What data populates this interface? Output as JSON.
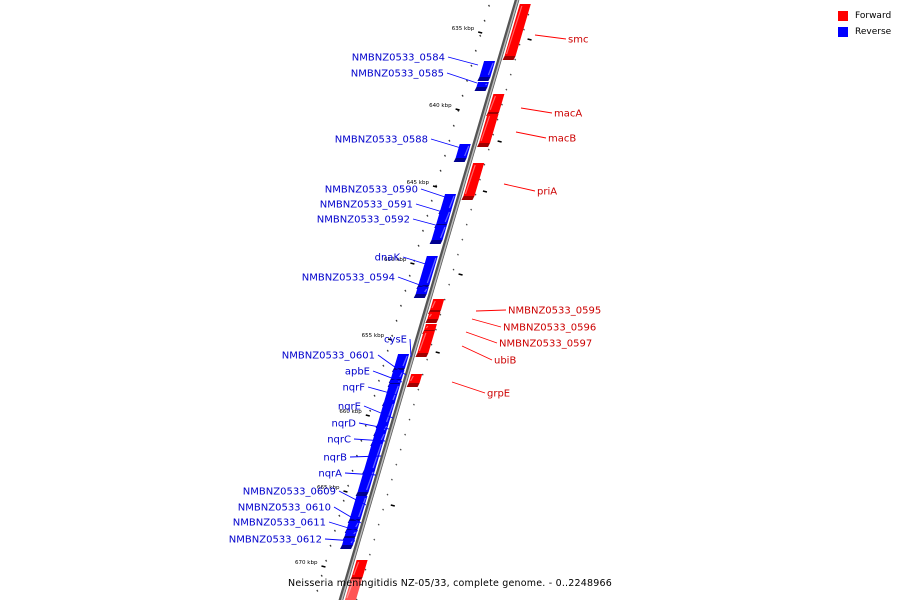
{
  "legend": [
    {
      "label": "Forward",
      "color": "#ff0000"
    },
    {
      "label": "Reverse",
      "color": "#0000ff"
    }
  ],
  "caption": "Neisseria meningitidis NZ-05/33, complete genome. - 0..2248966",
  "ruler_labels": [
    {
      "kbp": 635,
      "label": "635 kbp"
    },
    {
      "kbp": 640,
      "label": "640 kbp"
    },
    {
      "kbp": 645,
      "label": "645 kbp"
    },
    {
      "kbp": 650,
      "label": "650 kbp"
    },
    {
      "kbp": 655,
      "label": "655 kbp"
    },
    {
      "kbp": 660,
      "label": "660 kbp"
    },
    {
      "kbp": 665,
      "label": "665 kbp"
    },
    {
      "kbp": 670,
      "label": "670 kbp"
    }
  ],
  "forward_genes": [
    "smc",
    "macA",
    "macB",
    "priA",
    "NMBNZ0533_0595",
    "NMBNZ0533_0596",
    "NMBNZ0533_0597",
    "ubiB",
    "grpE"
  ],
  "reverse_genes": [
    "NMBNZ0533_0584",
    "NMBNZ0533_0585",
    "NMBNZ0533_0588",
    "NMBNZ0533_0590",
    "NMBNZ0533_0591",
    "NMBNZ0533_0592",
    "dnaK",
    "NMBNZ0533_0594",
    "cysE",
    "NMBNZ0533_0601",
    "apbE",
    "nqrF",
    "nqrE",
    "nqrD",
    "nqrC",
    "nqrB",
    "nqrA",
    "NMBNZ0533_0609",
    "NMBNZ0533_0610",
    "NMBNZ0533_0611",
    "NMBNZ0533_0612"
  ],
  "colors": {
    "forward": "#ff0000",
    "reverse": "#0000ff",
    "backbone": "#888888"
  }
}
